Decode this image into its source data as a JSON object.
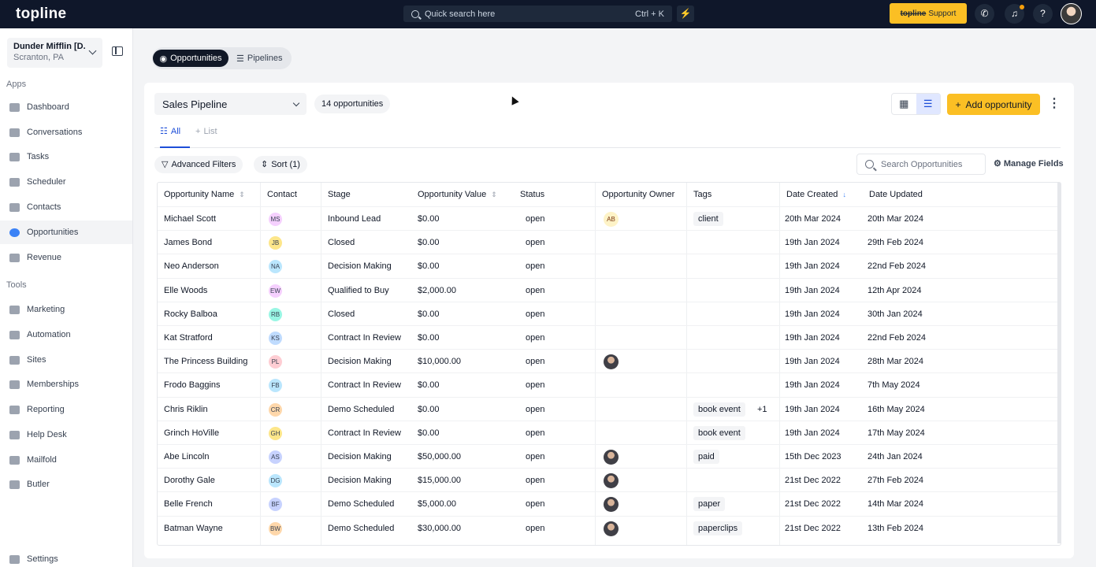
{
  "topbar": {
    "logo": "topline",
    "search_placeholder": "Quick search here",
    "search_shortcut": "Ctrl + K",
    "support_brand": "topline",
    "support_label": "Support"
  },
  "sidebar": {
    "account_name": "Dunder Mifflin [D...",
    "account_location": "Scranton, PA",
    "apps_label": "Apps",
    "tools_label": "Tools",
    "apps": [
      {
        "label": "Dashboard"
      },
      {
        "label": "Conversations"
      },
      {
        "label": "Tasks"
      },
      {
        "label": "Scheduler"
      },
      {
        "label": "Contacts"
      },
      {
        "label": "Opportunities"
      },
      {
        "label": "Revenue"
      }
    ],
    "tools": [
      {
        "label": "Marketing"
      },
      {
        "label": "Automation"
      },
      {
        "label": "Sites"
      },
      {
        "label": "Memberships"
      },
      {
        "label": "Reporting"
      },
      {
        "label": "Help Desk"
      },
      {
        "label": "Mailfold"
      },
      {
        "label": "Butler"
      }
    ],
    "settings_label": "Settings"
  },
  "main": {
    "tab_opportunities": "Opportunities",
    "tab_pipelines": "Pipelines",
    "pipeline_name": "Sales Pipeline",
    "count_label": "14 opportunities",
    "add_label": "Add opportunity",
    "subtab_all": "All",
    "subtab_list": "List",
    "filters_label": "Advanced Filters",
    "sort_label": "Sort (1)",
    "search_placeholder": "Search Opportunities",
    "manage_fields": "Manage Fields"
  },
  "table": {
    "headers": [
      "Opportunity Name",
      "Contact",
      "Stage",
      "Opportunity Value",
      "Status",
      "Opportunity Owner",
      "Tags",
      "Date Created",
      "Date Updated"
    ],
    "rows": [
      {
        "name": "Michael Scott",
        "contact": "MS",
        "stage": "Inbound Lead",
        "value": "$0.00",
        "status": "open",
        "owner": "AB",
        "tags": "client",
        "extra": "",
        "created": "20th Mar 2024",
        "updated": "20th Mar 2024"
      },
      {
        "name": "James Bond",
        "contact": "JB",
        "stage": "Closed",
        "value": "$0.00",
        "status": "open",
        "owner": "",
        "tags": "",
        "extra": "",
        "created": "19th Jan 2024",
        "updated": "29th Feb 2024"
      },
      {
        "name": "Neo Anderson",
        "contact": "NA",
        "stage": "Decision Making",
        "value": "$0.00",
        "status": "open",
        "owner": "",
        "tags": "",
        "extra": "",
        "created": "19th Jan 2024",
        "updated": "22nd Feb 2024"
      },
      {
        "name": "Elle Woods",
        "contact": "EW",
        "stage": "Qualified to Buy",
        "value": "$2,000.00",
        "status": "open",
        "owner": "",
        "tags": "",
        "extra": "",
        "created": "19th Jan 2024",
        "updated": "12th Apr 2024"
      },
      {
        "name": "Rocky Balboa",
        "contact": "RB",
        "stage": "Closed",
        "value": "$0.00",
        "status": "open",
        "owner": "",
        "tags": "",
        "extra": "",
        "created": "19th Jan 2024",
        "updated": "30th Jan 2024"
      },
      {
        "name": "Kat Stratford",
        "contact": "KS",
        "stage": "Contract In Review",
        "value": "$0.00",
        "status": "open",
        "owner": "",
        "tags": "",
        "extra": "",
        "created": "19th Jan 2024",
        "updated": "22nd Feb 2024"
      },
      {
        "name": "The Princess Building",
        "contact": "PL",
        "stage": "Decision Making",
        "value": "$10,000.00",
        "status": "open",
        "owner": "photo",
        "tags": "",
        "extra": "",
        "created": "19th Jan 2024",
        "updated": "28th Mar 2024"
      },
      {
        "name": "Frodo Baggins",
        "contact": "FB",
        "stage": "Contract In Review",
        "value": "$0.00",
        "status": "open",
        "owner": "",
        "tags": "",
        "extra": "",
        "created": "19th Jan 2024",
        "updated": "7th May 2024"
      },
      {
        "name": "Chris Riklin",
        "contact": "CR",
        "stage": "Demo Scheduled",
        "value": "$0.00",
        "status": "open",
        "owner": "",
        "tags": "book event",
        "extra": "+1",
        "created": "19th Jan 2024",
        "updated": "16th May 2024"
      },
      {
        "name": "Grinch HoVille",
        "contact": "GH",
        "stage": "Contract In Review",
        "value": "$0.00",
        "status": "open",
        "owner": "",
        "tags": "book event",
        "extra": "",
        "created": "19th Jan 2024",
        "updated": "17th May 2024"
      },
      {
        "name": "Abe Lincoln",
        "contact": "AS",
        "stage": "Decision Making",
        "value": "$50,000.00",
        "status": "open",
        "owner": "photo",
        "tags": "paid",
        "extra": "",
        "created": "15th Dec 2023",
        "updated": "24th Jan 2024"
      },
      {
        "name": "Dorothy Gale",
        "contact": "DG",
        "stage": "Decision Making",
        "value": "$15,000.00",
        "status": "open",
        "owner": "photo",
        "tags": "",
        "extra": "",
        "created": "21st Dec 2022",
        "updated": "27th Feb 2024"
      },
      {
        "name": "Belle French",
        "contact": "BF",
        "stage": "Demo Scheduled",
        "value": "$5,000.00",
        "status": "open",
        "owner": "photo",
        "tags": "paper",
        "extra": "",
        "created": "21st Dec 2022",
        "updated": "14th Mar 2024"
      },
      {
        "name": "Batman Wayne",
        "contact": "BW",
        "stage": "Demo Scheduled",
        "value": "$30,000.00",
        "status": "open",
        "owner": "photo",
        "tags": "paperclips",
        "extra": "",
        "created": "21st Dec 2022",
        "updated": "13th Feb 2024"
      }
    ]
  },
  "colors": {
    "brand_accent": "#fbbf24",
    "topbar": "#0f172a",
    "active_blue": "#1d4ed8"
  }
}
